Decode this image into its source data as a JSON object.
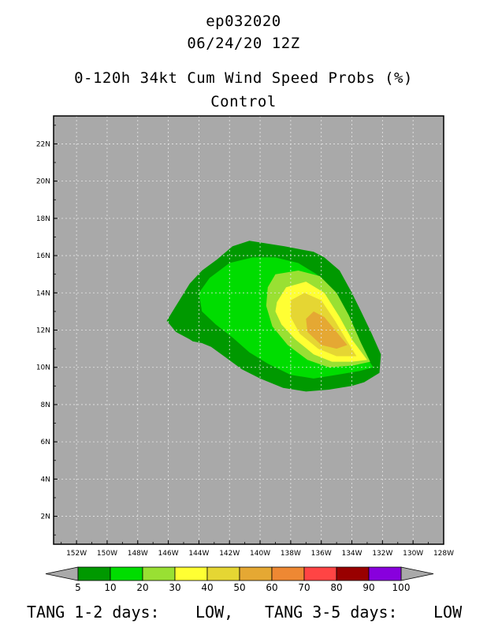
{
  "header": {
    "storm_id": "ep032020",
    "datetime": "06/24/20 12Z",
    "product": "0-120h 34kt Cum Wind Speed Probs (%)",
    "run": "Control"
  },
  "map": {
    "lat_labels": [
      "22N",
      "20N",
      "18N",
      "16N",
      "14N",
      "12N",
      "10N",
      "8N",
      "6N",
      "4N",
      "2N"
    ],
    "lon_labels": [
      "152W",
      "150W",
      "148W",
      "146W",
      "144W",
      "142W",
      "140W",
      "138W",
      "136W",
      "134W",
      "132W",
      "130W",
      "128W"
    ],
    "lat_range": [
      0.5,
      23.5
    ],
    "lon_range": [
      -153.5,
      -128
    ],
    "background_color": "#a9a9a9",
    "grid": "dashed"
  },
  "colorbar": {
    "labels": [
      "5",
      "10",
      "20",
      "30",
      "40",
      "50",
      "60",
      "70",
      "80",
      "90",
      "100"
    ],
    "colors": [
      "#009900",
      "#00dd00",
      "#99e033",
      "#ffff33",
      "#e5d633",
      "#e5a833",
      "#ee8833",
      "#ff4444",
      "#990000",
      "#8800dd"
    ],
    "end_color": "#a9a9a9"
  },
  "footer": {
    "tang_label_1": "TANG 1-2 days:",
    "tang_value_1": "LOW,",
    "tang_label_2": "TANG 3-5 days:",
    "tang_value_2": "LOW"
  },
  "chart_data": {
    "type": "heatmap",
    "title": "0-120h 34kt Cum Wind Speed Probs (%)",
    "subtitle": "Control",
    "contour_levels": [
      5,
      10,
      20,
      30,
      40,
      50,
      60,
      70,
      80,
      90,
      100
    ],
    "max_probability_region": {
      "level": 50,
      "center_lat": 12,
      "center_lon": -135.5
    },
    "regions": [
      {
        "level": 5,
        "polygon": [
          [
            -146.1,
            12.5
          ],
          [
            -145.5,
            13.3
          ],
          [
            -144.6,
            14.5
          ],
          [
            -143.8,
            15.2
          ],
          [
            -142.8,
            15.8
          ],
          [
            -141.8,
            16.5
          ],
          [
            -140.7,
            16.8
          ],
          [
            -138.4,
            16.5
          ],
          [
            -136.5,
            16.2
          ],
          [
            -135.8,
            15.9
          ],
          [
            -134.8,
            15.2
          ],
          [
            -134.0,
            14.0
          ],
          [
            -133.4,
            13.0
          ],
          [
            -132.7,
            11.8
          ],
          [
            -132.1,
            10.7
          ],
          [
            -132.2,
            9.7
          ],
          [
            -133.2,
            9.2
          ],
          [
            -134.0,
            9.0
          ],
          [
            -135.5,
            8.8
          ],
          [
            -137.0,
            8.7
          ],
          [
            -138.5,
            8.9
          ],
          [
            -140.0,
            9.4
          ],
          [
            -141.2,
            9.9
          ],
          [
            -142.2,
            10.5
          ],
          [
            -143.2,
            11.1
          ],
          [
            -143.8,
            11.3
          ],
          [
            -144.4,
            11.4
          ],
          [
            -144.6,
            11.5
          ],
          [
            -145.5,
            11.9
          ]
        ]
      },
      {
        "level": 10,
        "polygon": [
          [
            -144.0,
            14.0
          ],
          [
            -143.3,
            14.8
          ],
          [
            -142.0,
            15.6
          ],
          [
            -140.5,
            15.9
          ],
          [
            -139.0,
            15.9
          ],
          [
            -137.5,
            15.6
          ],
          [
            -136.3,
            15.0
          ],
          [
            -135.3,
            14.2
          ],
          [
            -134.6,
            13.1
          ],
          [
            -134.0,
            12.0
          ],
          [
            -133.4,
            11.0
          ],
          [
            -132.6,
            10.0
          ],
          [
            -133.5,
            9.8
          ],
          [
            -135.0,
            9.6
          ],
          [
            -136.5,
            9.4
          ],
          [
            -138.0,
            9.6
          ],
          [
            -139.5,
            10.2
          ],
          [
            -140.7,
            10.8
          ],
          [
            -141.8,
            11.6
          ],
          [
            -142.9,
            12.3
          ],
          [
            -143.8,
            13.0
          ]
        ]
      },
      {
        "level": 20,
        "polygon": [
          [
            -139.5,
            14.3
          ],
          [
            -139.0,
            15.0
          ],
          [
            -137.5,
            15.2
          ],
          [
            -136.1,
            14.9
          ],
          [
            -135.0,
            14.0
          ],
          [
            -134.2,
            12.8
          ],
          [
            -133.4,
            11.3
          ],
          [
            -132.8,
            10.3
          ],
          [
            -133.9,
            10.1
          ],
          [
            -135.5,
            10.0
          ],
          [
            -136.9,
            10.4
          ],
          [
            -138.2,
            11.2
          ],
          [
            -139.2,
            12.2
          ],
          [
            -139.6,
            13.3
          ]
        ]
      },
      {
        "level": 30,
        "polygon": [
          [
            -138.9,
            13.5
          ],
          [
            -138.3,
            14.3
          ],
          [
            -137.0,
            14.6
          ],
          [
            -135.8,
            14.0
          ],
          [
            -134.8,
            12.7
          ],
          [
            -134.0,
            11.5
          ],
          [
            -133.0,
            10.4
          ],
          [
            -134.0,
            10.3
          ],
          [
            -135.3,
            10.3
          ],
          [
            -136.5,
            10.7
          ],
          [
            -137.7,
            11.5
          ],
          [
            -138.6,
            12.3
          ],
          [
            -139.0,
            13.0
          ]
        ]
      },
      {
        "level": 40,
        "polygon": [
          [
            -138.0,
            13.6
          ],
          [
            -137.1,
            14.0
          ],
          [
            -136.0,
            13.6
          ],
          [
            -135.1,
            12.5
          ],
          [
            -134.3,
            11.4
          ],
          [
            -133.7,
            10.6
          ],
          [
            -135.0,
            10.6
          ],
          [
            -136.2,
            11.0
          ],
          [
            -137.4,
            11.8
          ],
          [
            -138.0,
            12.7
          ]
        ]
      },
      {
        "level": 50,
        "polygon": [
          [
            -137.0,
            12.6
          ],
          [
            -136.5,
            13.0
          ],
          [
            -135.8,
            12.7
          ],
          [
            -135.1,
            12.0
          ],
          [
            -134.3,
            11.2
          ],
          [
            -135.0,
            11.0
          ],
          [
            -136.0,
            11.2
          ],
          [
            -136.9,
            11.9
          ]
        ]
      }
    ]
  }
}
